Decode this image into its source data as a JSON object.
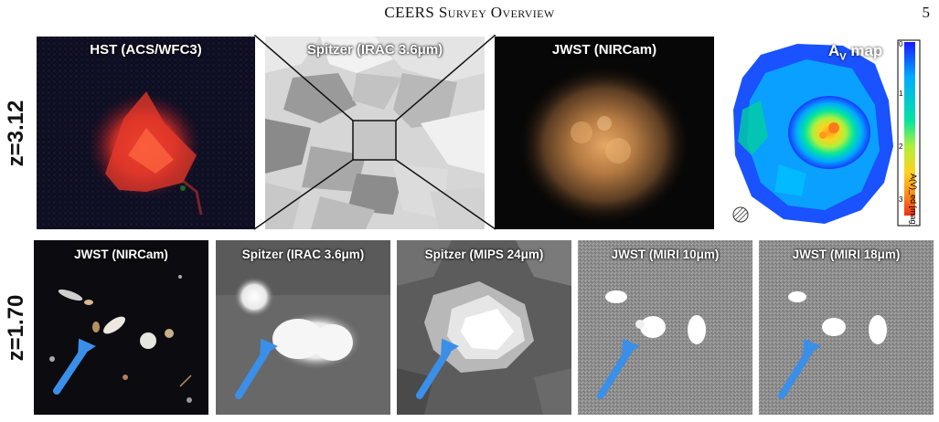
{
  "header": {
    "running_title": "CEERS Survey Overview",
    "page_number": "5"
  },
  "rows": {
    "top": {
      "label": "z=3.12"
    },
    "bottom": {
      "label": "z=1.70"
    }
  },
  "top_panels": [
    {
      "label": "HST (ACS/WFC3)"
    },
    {
      "label": "Spitzer (IRAC 3.6μm)"
    },
    {
      "label": "JWST (NIRCam)"
    },
    {
      "label": "AV map"
    }
  ],
  "av_map": {
    "title": "A",
    "title_sub": "V",
    "title_suffix": " map",
    "colorbar_ticks": [
      "0",
      "1",
      "2",
      "3"
    ],
    "colorbar_unit": "A(V)_ed [mag]",
    "colormap": [
      "#1a1aff",
      "#00aaff",
      "#00e5a0",
      "#aef03c",
      "#ffd21e",
      "#ff8a1a",
      "#e8321a"
    ]
  },
  "bottom_panels": [
    {
      "label": "JWST (NIRCam)"
    },
    {
      "label": "Spitzer (IRAC 3.6μm)"
    },
    {
      "label": "Spitzer (MIPS 24μm)"
    },
    {
      "label": "JWST (MIRI 10μm)"
    },
    {
      "label": "JWST (MIRI 18μm)"
    }
  ],
  "colors": {
    "arrow": "#3a8fe8",
    "hst_source": "#e23a2a",
    "nircam_source": "#c98a4a"
  }
}
